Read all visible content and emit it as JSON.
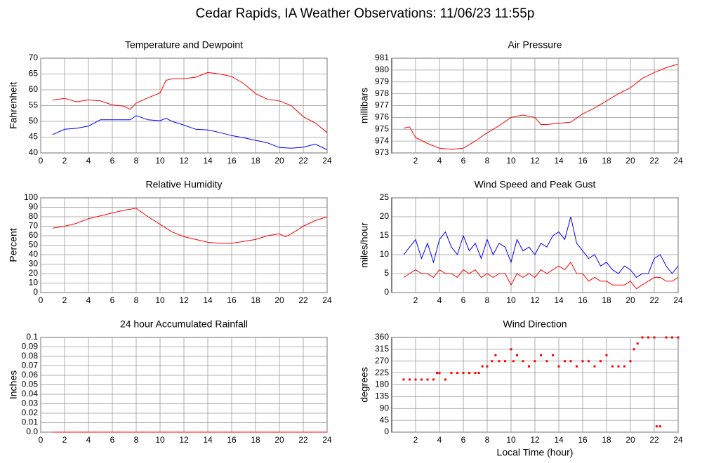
{
  "title": "Cedar Rapids, IA Weather Observations: 11/06/23 11:55p",
  "chart_data": [
    {
      "type": "line",
      "title": "Temperature and Dewpoint",
      "ylabel": "Fahrenheit",
      "x": [
        1,
        2,
        3,
        4,
        5,
        6,
        7,
        7.5,
        8,
        9,
        10,
        10.5,
        11,
        12,
        13,
        14,
        15,
        16,
        17,
        18,
        19,
        20,
        21,
        22,
        23,
        24
      ],
      "series": [
        {
          "color": "#ff0000",
          "values": [
            56.7,
            57.3,
            56.2,
            56.8,
            56.5,
            55.2,
            54.8,
            53.8,
            55.8,
            57.5,
            59,
            63,
            63.5,
            63.5,
            64,
            65.5,
            65,
            64.2,
            62,
            58.8,
            57,
            56.5,
            55,
            51.5,
            49.5,
            46.5
          ]
        },
        {
          "color": "#0000ff",
          "values": [
            45.8,
            47.5,
            47.8,
            48.5,
            50.5,
            50.5,
            50.5,
            50.5,
            51.8,
            50.5,
            50.2,
            51,
            50,
            48.8,
            47.5,
            47.3,
            46.5,
            45.5,
            44.8,
            44,
            43.2,
            41.7,
            41.5,
            41.8,
            42.8,
            41
          ]
        }
      ],
      "xlim": [
        0,
        24
      ],
      "xticks": [
        0,
        2,
        4,
        6,
        8,
        10,
        12,
        14,
        16,
        18,
        20,
        22,
        24
      ],
      "ylim": [
        40,
        70
      ],
      "yticks": [
        40,
        45,
        50,
        55,
        60,
        65,
        70
      ],
      "grid": true
    },
    {
      "type": "line",
      "title": "Air Pressure",
      "ylabel": "millibars",
      "x": [
        1,
        1.5,
        2,
        3,
        4,
        5,
        6,
        7,
        8,
        9,
        10,
        11,
        12,
        12.5,
        13,
        14,
        15,
        16,
        17,
        18,
        19,
        20,
        21,
        22,
        23,
        24
      ],
      "series": [
        {
          "color": "#ff0000",
          "values": [
            975.1,
            975.2,
            974.3,
            973.8,
            973.4,
            973.3,
            973.4,
            974,
            974.7,
            975.3,
            976,
            976.2,
            976,
            975.4,
            975.4,
            975.5,
            975.6,
            976.3,
            976.8,
            977.4,
            978,
            978.5,
            979.3,
            979.8,
            980.2,
            980.5
          ]
        }
      ],
      "xlim": [
        0,
        24
      ],
      "xticks": [
        2,
        4,
        6,
        8,
        10,
        12,
        14,
        16,
        18,
        20,
        22,
        24
      ],
      "ylim": [
        973,
        981
      ],
      "yticks": [
        973,
        974,
        975,
        976,
        977,
        978,
        979,
        980,
        981
      ],
      "grid": true
    },
    {
      "type": "line",
      "title": "Relative Humidity",
      "ylabel": "Percent",
      "x": [
        1,
        2,
        3,
        4,
        5,
        6,
        7,
        8,
        9,
        10,
        11,
        12,
        13,
        14,
        15,
        16,
        17,
        18,
        19,
        20,
        20.5,
        21,
        22,
        23,
        24
      ],
      "series": [
        {
          "color": "#ff0000",
          "values": [
            68,
            70,
            73,
            78,
            81,
            84,
            87,
            89,
            80,
            72,
            64,
            59,
            56,
            53,
            52,
            52,
            54,
            56,
            60,
            62,
            59,
            62,
            70,
            76,
            80
          ]
        }
      ],
      "xlim": [
        0,
        24
      ],
      "xticks": [
        0,
        2,
        4,
        6,
        8,
        10,
        12,
        14,
        16,
        18,
        20,
        22,
        24
      ],
      "ylim": [
        0,
        100
      ],
      "yticks": [
        0,
        10,
        20,
        30,
        40,
        50,
        60,
        70,
        80,
        90,
        100
      ],
      "grid": true
    },
    {
      "type": "line",
      "title": "Wind Speed and Peak Gust",
      "ylabel": "miles/hour",
      "x": [
        1,
        1.5,
        2,
        2.5,
        3,
        3.5,
        4,
        4.5,
        5,
        5.5,
        6,
        6.5,
        7,
        7.5,
        8,
        8.5,
        9,
        9.5,
        10,
        10.5,
        11,
        11.5,
        12,
        12.5,
        13,
        13.5,
        14,
        14.5,
        15,
        15.5,
        16,
        16.5,
        17,
        17.5,
        18,
        18.5,
        19,
        19.5,
        20,
        20.5,
        21,
        21.5,
        22,
        22.5,
        23,
        23.5,
        24
      ],
      "series": [
        {
          "color": "#0000ff",
          "values": [
            10,
            12,
            14,
            9,
            13,
            8,
            14,
            16,
            12,
            10,
            15,
            11,
            13,
            9,
            14,
            10,
            13,
            12,
            8,
            14,
            11,
            12,
            10,
            13,
            12,
            15,
            16,
            14,
            20,
            13,
            11,
            9,
            10,
            7,
            8,
            6,
            5,
            7,
            6,
            4,
            5,
            5,
            9,
            10,
            7,
            5,
            7
          ]
        },
        {
          "color": "#ff0000",
          "values": [
            4,
            5,
            6,
            5,
            5,
            4,
            6,
            5,
            5,
            4,
            6,
            5,
            6,
            4,
            5,
            4,
            5,
            5,
            2,
            5,
            4,
            5,
            4,
            6,
            5,
            6,
            7,
            6,
            8,
            5,
            5,
            3,
            4,
            3,
            3,
            2,
            2,
            2,
            3,
            1,
            2,
            3,
            4,
            4,
            3,
            3,
            4
          ]
        }
      ],
      "xlim": [
        0,
        24
      ],
      "xticks": [
        2,
        4,
        6,
        8,
        10,
        12,
        14,
        16,
        18,
        20,
        22,
        24
      ],
      "ylim": [
        0,
        25
      ],
      "yticks": [
        0,
        5,
        10,
        15,
        20,
        25
      ],
      "grid": true
    },
    {
      "type": "line",
      "title": "24 hour Accumulated Rainfall",
      "ylabel": "Inches",
      "x": [
        1,
        24
      ],
      "series": [
        {
          "color": "#ff0000",
          "values": [
            0,
            0
          ]
        }
      ],
      "xlim": [
        0,
        24
      ],
      "xticks": [
        0,
        2,
        4,
        6,
        8,
        10,
        12,
        14,
        16,
        18,
        20,
        22,
        24
      ],
      "ylim": [
        0,
        0.1
      ],
      "yticks": [
        {
          "value": 0,
          "label": "0.0"
        },
        0.01,
        0.02,
        0.03,
        0.04,
        0.05,
        0.06,
        0.07,
        0.08,
        0.09,
        0.1
      ],
      "grid": true
    },
    {
      "type": "scatter",
      "title": "Wind Direction",
      "ylabel": "degrees",
      "xlabel": "Local Time (hour)",
      "x": [
        1,
        1.5,
        2,
        2.5,
        3,
        3.5,
        3.8,
        4,
        4.5,
        5,
        5.5,
        6,
        6.5,
        7,
        7.3,
        7.6,
        8,
        8.4,
        8.7,
        9,
        9.5,
        10,
        10.2,
        10.5,
        11,
        11.5,
        12,
        12.5,
        13,
        13.5,
        14,
        14.5,
        15,
        15.5,
        16,
        16.5,
        17,
        17.5,
        18,
        18.5,
        19,
        19.5,
        20,
        20.3,
        20.6,
        21,
        21.5,
        22,
        22.2,
        22.5,
        23,
        23.5,
        24
      ],
      "series": [
        {
          "color": "#ff0000",
          "values": [
            200,
            200,
            200,
            200,
            200,
            200,
            225,
            225,
            200,
            225,
            225,
            225,
            225,
            225,
            225,
            250,
            250,
            270,
            292,
            270,
            270,
            315,
            270,
            292,
            270,
            250,
            270,
            292,
            270,
            292,
            250,
            270,
            270,
            250,
            270,
            270,
            250,
            270,
            292,
            250,
            250,
            250,
            270,
            315,
            337,
            360,
            360,
            360,
            22,
            22,
            360,
            360,
            360
          ]
        }
      ],
      "xlim": [
        0,
        24
      ],
      "xticks": [
        2,
        4,
        6,
        8,
        10,
        12,
        14,
        16,
        18,
        20,
        22,
        24
      ],
      "ylim": [
        0,
        360
      ],
      "yticks": [
        0,
        45,
        90,
        135,
        180,
        225,
        270,
        315,
        360
      ],
      "grid": true
    }
  ]
}
